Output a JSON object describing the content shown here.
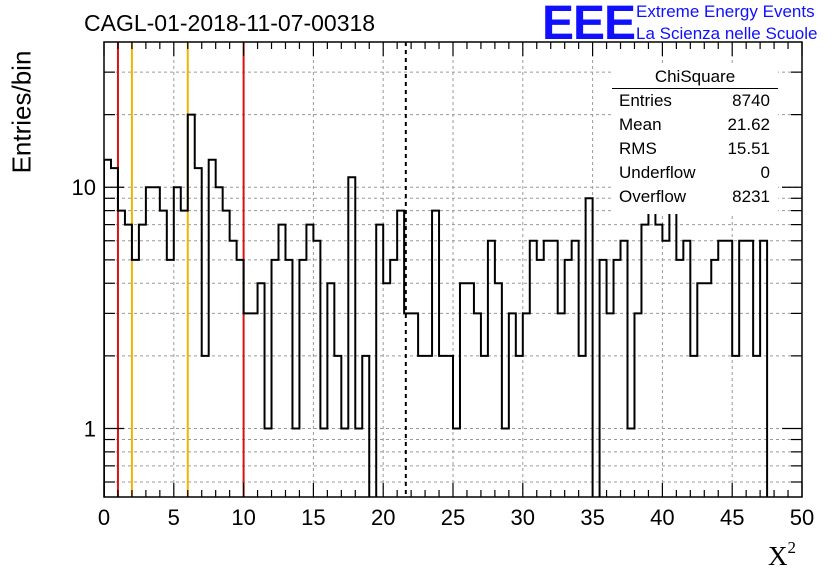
{
  "chart_data": {
    "type": "histogram",
    "title": "CAGL-01-2018-11-07-00318",
    "xlabel": "X",
    "xlabel_sup": "2",
    "ylabel": "Entries/bin",
    "xlim": [
      0,
      50
    ],
    "ylim": [
      0.52,
      40
    ],
    "yscale": "log",
    "grid": true,
    "bin_width": 0.5,
    "x_ticks": [
      "0",
      "5",
      "10",
      "15",
      "20",
      "25",
      "30",
      "35",
      "40",
      "45",
      "50"
    ],
    "y_ticks": [
      "1",
      "10"
    ],
    "counts": [
      13,
      12,
      8,
      7,
      5,
      7,
      10,
      10,
      8,
      5,
      10,
      8,
      20,
      12,
      2,
      13,
      10,
      8,
      6,
      5,
      3,
      3,
      4,
      1,
      5,
      7,
      5,
      1,
      5,
      7,
      6,
      1,
      4,
      2,
      1,
      11,
      1,
      2,
      0,
      7,
      4,
      5,
      8,
      3,
      3,
      2,
      2,
      8,
      2,
      2,
      1,
      4,
      4,
      3,
      2,
      6,
      4,
      1,
      3,
      2,
      3,
      6,
      5,
      6,
      6,
      3,
      5,
      6,
      2,
      9,
      0,
      5,
      3,
      5,
      6,
      1,
      3,
      7,
      8,
      7,
      6,
      9,
      5,
      6,
      2,
      4,
      4,
      5,
      6,
      6,
      2,
      6,
      6,
      2,
      6
    ],
    "markers": [
      {
        "x": 1,
        "color": "#dd1111",
        "style": "solid"
      },
      {
        "x": 2,
        "color": "#f0b400",
        "style": "solid"
      },
      {
        "x": 6,
        "color": "#f0b400",
        "style": "solid"
      },
      {
        "x": 10,
        "color": "#dd1111",
        "style": "solid"
      },
      {
        "x": 21.62,
        "color": "#000000",
        "style": "dashed"
      }
    ]
  },
  "logo": {
    "text": "EEE",
    "line1": "Extreme Energy Events",
    "line2": "La Scienza nelle Scuole",
    "color": "#1010ff"
  },
  "stats": {
    "title": "ChiSquare",
    "rows": [
      {
        "label": "Entries",
        "value": "8740"
      },
      {
        "label": "Mean",
        "value": "21.62"
      },
      {
        "label": "RMS",
        "value": "15.51"
      },
      {
        "label": "Underflow",
        "value": "0"
      },
      {
        "label": "Overflow",
        "value": "8231"
      }
    ]
  }
}
